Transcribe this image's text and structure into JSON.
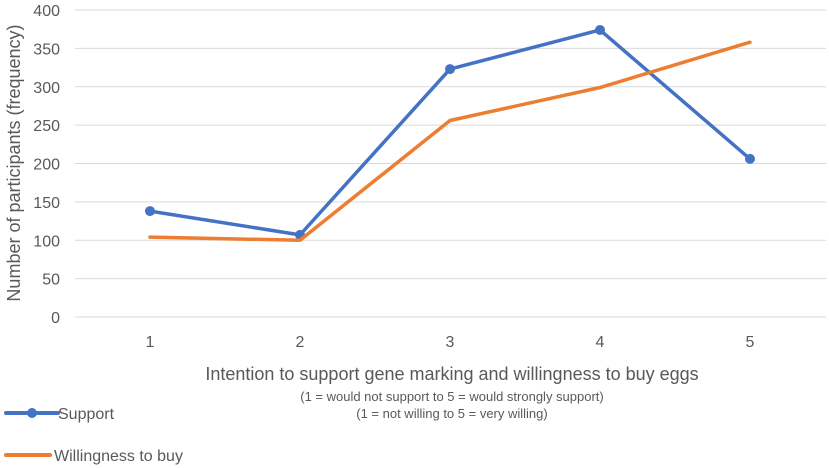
{
  "chart_data": {
    "type": "line",
    "x": [
      1,
      2,
      3,
      4,
      5
    ],
    "series": [
      {
        "name": "Support",
        "values": [
          138,
          107,
          323,
          374,
          206
        ],
        "color": "#4472C4",
        "markers": true
      },
      {
        "name": "Willingness to buy",
        "values": [
          104,
          100,
          256,
          299,
          358
        ],
        "color": "#ED7D31",
        "markers": false
      }
    ],
    "ylabel": "Number of participants (frequency)",
    "xlabel": "Intention to support gene marking and willingness to buy eggs",
    "xlabel_notes": [
      "(1 = would not support to 5 = would strongly support)",
      "(1 = not willing to 5 = very willing)"
    ],
    "ylim": [
      0,
      400
    ],
    "yticks": [
      0,
      50,
      100,
      150,
      200,
      250,
      300,
      350,
      400
    ],
    "grid": true,
    "legend_position": "bottom-left"
  }
}
